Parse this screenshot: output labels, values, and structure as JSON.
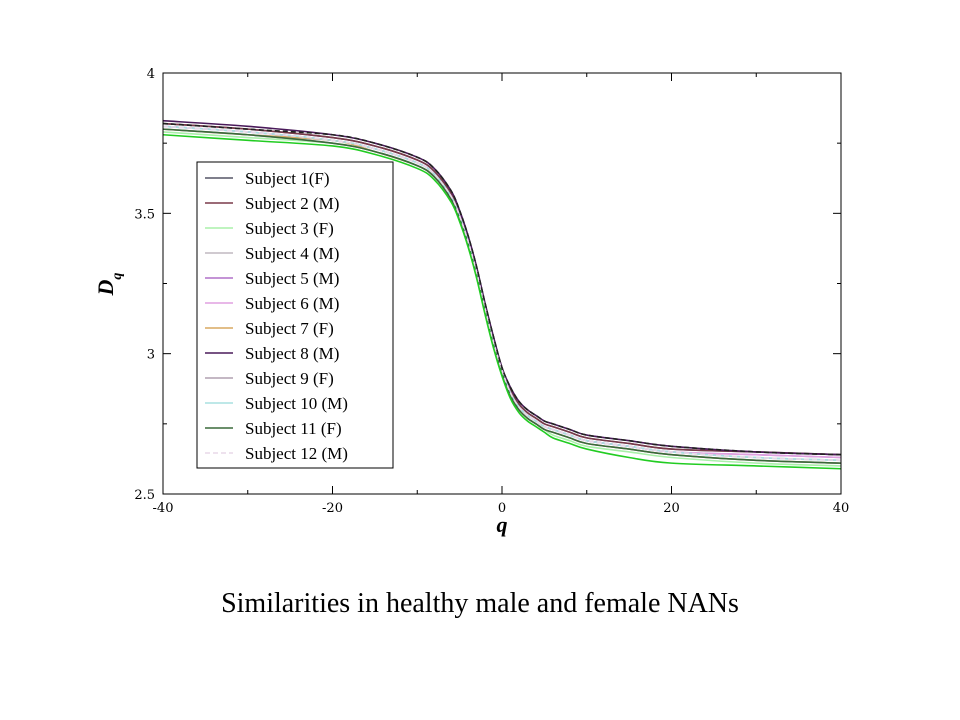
{
  "caption": "Similarities in healthy male and female NANs",
  "chart_data": {
    "type": "line",
    "xlabel": "q",
    "ylabel": "D",
    "ylabel_subscript": "q",
    "xlim": [
      -40,
      40
    ],
    "ylim": [
      2.5,
      4
    ],
    "xticks": [
      -40,
      -20,
      0,
      20,
      40
    ],
    "xtick_labels": [
      "-40",
      "-20",
      "0",
      "20",
      "40"
    ],
    "yticks": [
      2.5,
      3,
      3.5,
      4
    ],
    "ytick_labels": [
      "2.5",
      "3",
      "3.5",
      "4"
    ],
    "grid": false,
    "legend_position": "left",
    "x": [
      -40,
      -30,
      -20,
      -15,
      -10,
      -8,
      -6,
      -5,
      -4,
      -3,
      -2,
      -1,
      0,
      1,
      2,
      3,
      4,
      5,
      6,
      8,
      10,
      15,
      20,
      30,
      40
    ],
    "series": [
      {
        "name": "Subject 1(F)",
        "color": "#555566",
        "values": [
          3.82,
          3.8,
          3.77,
          3.74,
          3.69,
          3.65,
          3.57,
          3.5,
          3.41,
          3.3,
          3.17,
          3.05,
          2.95,
          2.87,
          2.82,
          2.79,
          2.77,
          2.75,
          2.74,
          2.72,
          2.7,
          2.68,
          2.66,
          2.65,
          2.64
        ]
      },
      {
        "name": "Subject 2 (M)",
        "color": "#7a3a4a",
        "values": [
          3.82,
          3.8,
          3.77,
          3.74,
          3.69,
          3.65,
          3.57,
          3.5,
          3.41,
          3.3,
          3.17,
          3.05,
          2.95,
          2.87,
          2.82,
          2.79,
          2.77,
          2.75,
          2.74,
          2.72,
          2.7,
          2.68,
          2.66,
          2.65,
          2.64
        ]
      },
      {
        "name": "Subject 3 (F)",
        "color": "#aaf0aa",
        "values": [
          3.79,
          3.77,
          3.75,
          3.72,
          3.67,
          3.63,
          3.55,
          3.48,
          3.39,
          3.28,
          3.15,
          3.03,
          2.93,
          2.85,
          2.8,
          2.77,
          2.75,
          2.73,
          2.71,
          2.69,
          2.67,
          2.65,
          2.63,
          2.61,
          2.6
        ]
      },
      {
        "name": "Subject 4 (M)",
        "color": "#c0b8c0",
        "values": [
          3.8,
          3.78,
          3.76,
          3.73,
          3.68,
          3.64,
          3.56,
          3.49,
          3.4,
          3.29,
          3.16,
          3.04,
          2.94,
          2.86,
          2.81,
          2.78,
          2.76,
          2.74,
          2.73,
          2.71,
          2.69,
          2.67,
          2.65,
          2.63,
          2.62
        ]
      },
      {
        "name": "Subject 5 (M)",
        "color": "#b070c8",
        "values": [
          3.81,
          3.79,
          3.76,
          3.73,
          3.68,
          3.64,
          3.56,
          3.49,
          3.4,
          3.29,
          3.16,
          3.04,
          2.94,
          2.86,
          2.81,
          2.78,
          2.76,
          2.74,
          2.73,
          2.71,
          2.69,
          2.67,
          2.65,
          2.64,
          2.63
        ]
      },
      {
        "name": "Subject 6 (M)",
        "color": "#e0a0e0",
        "values": [
          3.81,
          3.79,
          3.76,
          3.73,
          3.68,
          3.64,
          3.56,
          3.49,
          3.4,
          3.29,
          3.16,
          3.04,
          2.94,
          2.86,
          2.81,
          2.78,
          2.76,
          2.74,
          2.73,
          2.71,
          2.69,
          2.67,
          2.65,
          2.64,
          2.63
        ]
      },
      {
        "name": "Subject 7 (F)",
        "color": "#d8a860",
        "values": [
          3.8,
          3.78,
          3.76,
          3.72,
          3.67,
          3.63,
          3.55,
          3.48,
          3.39,
          3.28,
          3.15,
          3.03,
          2.93,
          2.85,
          2.8,
          2.77,
          2.75,
          2.73,
          2.72,
          2.7,
          2.68,
          2.66,
          2.64,
          2.62,
          2.61
        ]
      },
      {
        "name": "Subject 8 (M)",
        "color": "#4a1a5a",
        "values": [
          3.83,
          3.81,
          3.78,
          3.75,
          3.7,
          3.66,
          3.58,
          3.51,
          3.42,
          3.31,
          3.18,
          3.06,
          2.95,
          2.88,
          2.83,
          2.8,
          2.78,
          2.76,
          2.75,
          2.73,
          2.71,
          2.69,
          2.67,
          2.65,
          2.64
        ]
      },
      {
        "name": "Subject 9 (F)",
        "color": "#b0a0b0",
        "values": [
          3.8,
          3.78,
          3.75,
          3.72,
          3.67,
          3.63,
          3.55,
          3.48,
          3.39,
          3.28,
          3.15,
          3.03,
          2.93,
          2.85,
          2.8,
          2.77,
          2.75,
          2.73,
          2.72,
          2.7,
          2.68,
          2.66,
          2.64,
          2.62,
          2.61
        ]
      },
      {
        "name": "Subject 10 (M)",
        "color": "#a8e0e0",
        "values": [
          3.81,
          3.79,
          3.76,
          3.73,
          3.68,
          3.64,
          3.56,
          3.49,
          3.4,
          3.29,
          3.16,
          3.04,
          2.94,
          2.86,
          2.81,
          2.78,
          2.76,
          2.74,
          2.73,
          2.71,
          2.69,
          2.67,
          2.65,
          2.63,
          2.62
        ]
      },
      {
        "name": "Subject 11 (F)",
        "color": "#3a6a3a",
        "values": [
          3.8,
          3.78,
          3.75,
          3.72,
          3.67,
          3.63,
          3.55,
          3.48,
          3.39,
          3.28,
          3.15,
          3.03,
          2.93,
          2.85,
          2.8,
          2.77,
          2.75,
          2.73,
          2.72,
          2.7,
          2.68,
          2.66,
          2.64,
          2.62,
          2.61
        ]
      },
      {
        "name": "Subject 12 (M)",
        "color": "#e8d8e8",
        "dashed": true,
        "values": [
          3.81,
          3.79,
          3.76,
          3.73,
          3.68,
          3.64,
          3.56,
          3.49,
          3.4,
          3.29,
          3.16,
          3.04,
          2.94,
          2.86,
          2.81,
          2.78,
          2.76,
          2.74,
          2.73,
          2.71,
          2.69,
          2.67,
          2.65,
          2.63,
          2.62
        ]
      },
      {
        "name": "",
        "color": "#22cc22",
        "values": [
          3.78,
          3.76,
          3.74,
          3.71,
          3.66,
          3.62,
          3.54,
          3.47,
          3.38,
          3.27,
          3.14,
          3.02,
          2.92,
          2.84,
          2.79,
          2.76,
          2.74,
          2.72,
          2.7,
          2.68,
          2.66,
          2.63,
          2.61,
          2.6,
          2.59
        ]
      },
      {
        "name": "",
        "color": "#222222",
        "dashed": true,
        "values": [
          3.82,
          3.8,
          3.78,
          3.75,
          3.7,
          3.66,
          3.58,
          3.51,
          3.42,
          3.31,
          3.18,
          3.06,
          2.95,
          2.88,
          2.83,
          2.8,
          2.78,
          2.76,
          2.75,
          2.73,
          2.71,
          2.69,
          2.67,
          2.65,
          2.64
        ]
      }
    ]
  }
}
